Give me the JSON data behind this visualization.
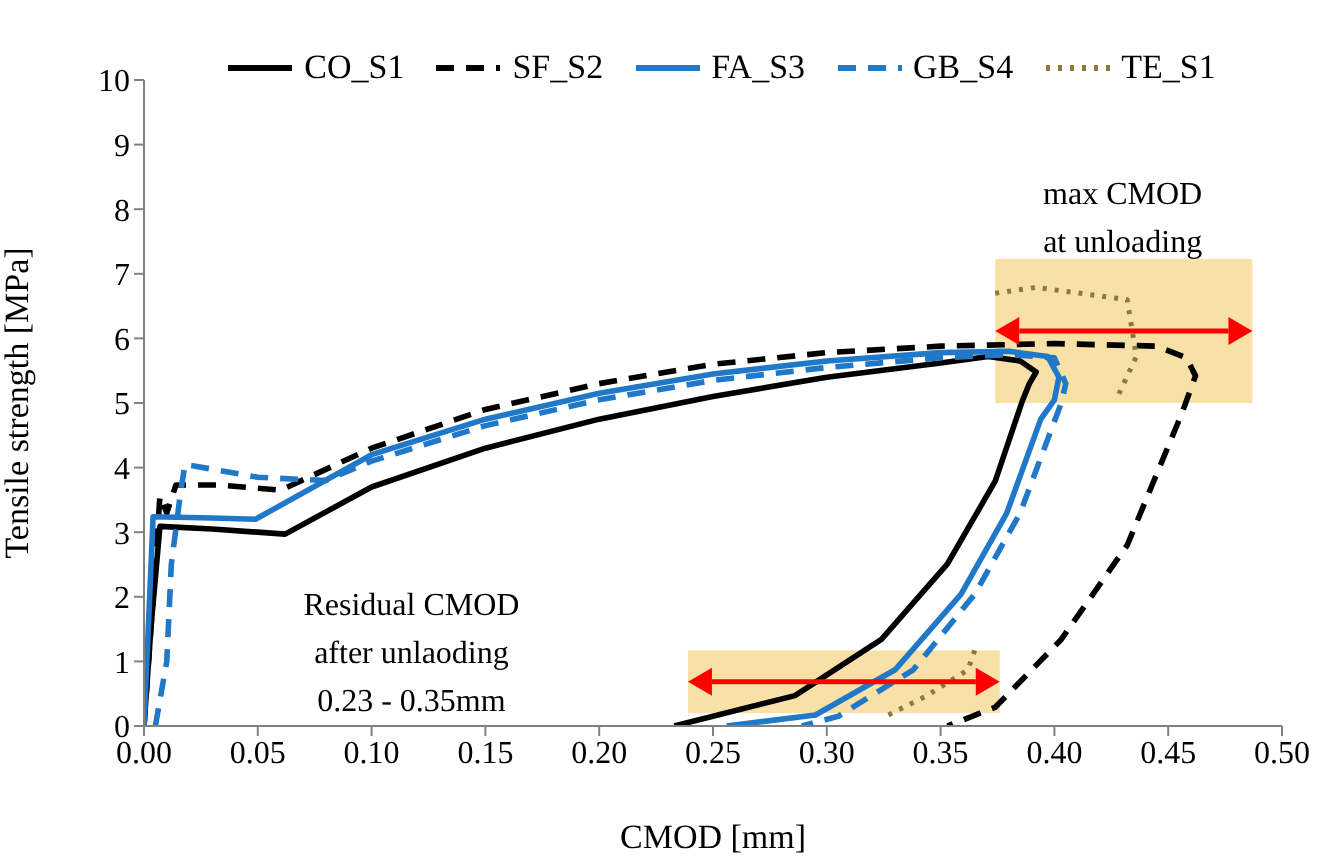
{
  "chart_data": {
    "type": "line",
    "xlabel": "CMOD [mm]",
    "ylabel": "Tensile strength [MPa]",
    "xlim": [
      0,
      0.5
    ],
    "ylim": [
      0,
      10
    ],
    "xticks": [
      {
        "value": 0,
        "label": "0.00"
      },
      {
        "value": 0.05,
        "label": "0.05"
      },
      {
        "value": 0.1,
        "label": "0.10"
      },
      {
        "value": 0.15,
        "label": "0.15"
      },
      {
        "value": 0.2,
        "label": "0.20"
      },
      {
        "value": 0.25,
        "label": "0.25"
      },
      {
        "value": 0.3,
        "label": "0.30"
      },
      {
        "value": 0.35,
        "label": "0.35"
      },
      {
        "value": 0.4,
        "label": "0.40"
      },
      {
        "value": 0.45,
        "label": "0.45"
      },
      {
        "value": 0.5,
        "label": "0.50"
      }
    ],
    "yticks": [
      0,
      1,
      2,
      3,
      4,
      5,
      6,
      7,
      8,
      9,
      10
    ],
    "grid": false,
    "legend": "top",
    "marker": "none",
    "series": [
      {
        "name": "CO_S1",
        "color": "#000000",
        "line_style": "solid",
        "x": [
          0,
          0.003,
          0.007,
          0.03,
          0.062,
          0.1,
          0.15,
          0.2,
          0.25,
          0.3,
          0.35,
          0.371,
          0.385,
          0.392,
          0.389,
          0.386,
          0.374,
          0.353,
          0.324,
          0.286,
          0.233
        ],
        "values": [
          0,
          1.5,
          3.09,
          3.05,
          2.97,
          3.7,
          4.3,
          4.75,
          5.1,
          5.4,
          5.62,
          5.72,
          5.65,
          5.48,
          5.3,
          5.04,
          3.79,
          2.51,
          1.34,
          0.47,
          0
        ]
      },
      {
        "name": "SF_S2",
        "color": "#000000",
        "line_style": "dashed",
        "x": [
          0,
          0.004,
          0.007,
          0.01,
          0.014,
          0.033,
          0.06,
          0.1,
          0.15,
          0.2,
          0.25,
          0.3,
          0.35,
          0.4,
          0.445,
          0.458,
          0.462,
          0.456,
          0.432,
          0.403,
          0.374,
          0.353
        ],
        "values": [
          0,
          2,
          3.56,
          3.3,
          3.73,
          3.73,
          3.65,
          4.3,
          4.9,
          5.3,
          5.6,
          5.78,
          5.88,
          5.92,
          5.88,
          5.7,
          5.42,
          4.84,
          2.8,
          1.34,
          0.29,
          0
        ]
      },
      {
        "name": "FA_S3",
        "color": "#1f78c8",
        "line_style": "solid",
        "x": [
          0,
          0.002,
          0.004,
          0.03,
          0.049,
          0.1,
          0.15,
          0.2,
          0.25,
          0.3,
          0.35,
          0.38,
          0.397,
          0.402,
          0.4,
          0.394,
          0.379,
          0.359,
          0.33,
          0.295,
          0.256
        ],
        "values": [
          0,
          1.6,
          3.24,
          3.22,
          3.2,
          4.2,
          4.75,
          5.15,
          5.45,
          5.65,
          5.78,
          5.8,
          5.72,
          5.4,
          5.05,
          4.75,
          3.29,
          2.04,
          0.87,
          0.17,
          0
        ]
      },
      {
        "name": "GB_S4",
        "color": "#1f78c8",
        "line_style": "dashed",
        "x": [
          0.005,
          0.01,
          0.012,
          0.016,
          0.018,
          0.05,
          0.08,
          0.1,
          0.15,
          0.2,
          0.25,
          0.3,
          0.35,
          0.38,
          0.4,
          0.405,
          0.403,
          0.385,
          0.365,
          0.338,
          0.305,
          0.289
        ],
        "values": [
          0,
          1,
          2.5,
          3.6,
          4.05,
          3.85,
          3.8,
          4.1,
          4.65,
          5.05,
          5.35,
          5.55,
          5.7,
          5.75,
          5.7,
          5.3,
          5,
          3.3,
          2.04,
          0.87,
          0.15,
          0
        ]
      },
      {
        "name": "TE_S1",
        "color": "#8c7a3c",
        "line_style": "dotted",
        "x": [
          0.374,
          0.392,
          0.432,
          0.436,
          0.427,
          0.4,
          0.365,
          0.362,
          0.344,
          0.327
        ],
        "values": [
          6.7,
          6.79,
          6.6,
          5.72,
          5.04,
          null,
          1.17,
          0.87,
          0.47,
          0.17
        ]
      }
    ],
    "bands": [
      {
        "axis": "x",
        "from": 0.374,
        "to": 0.487,
        "color": "#f7d58a"
      },
      {
        "axis": "x",
        "from": 0.239,
        "to": 0.376,
        "color": "#f7d58a"
      }
    ],
    "annotations": [
      "max CMOD\nat unloading",
      "Residual CMOD\nafter unlaoding\n0.23 - 0.35mm"
    ]
  }
}
